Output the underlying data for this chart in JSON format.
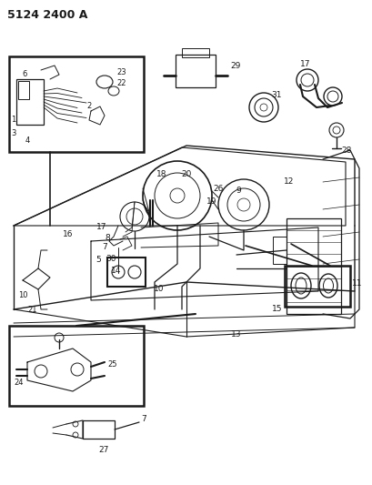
{
  "title": "5124 2400 A",
  "bg_color": "#ffffff",
  "line_color": "#1a1a1a",
  "fig_width": 4.1,
  "fig_height": 5.33,
  "dpi": 100
}
